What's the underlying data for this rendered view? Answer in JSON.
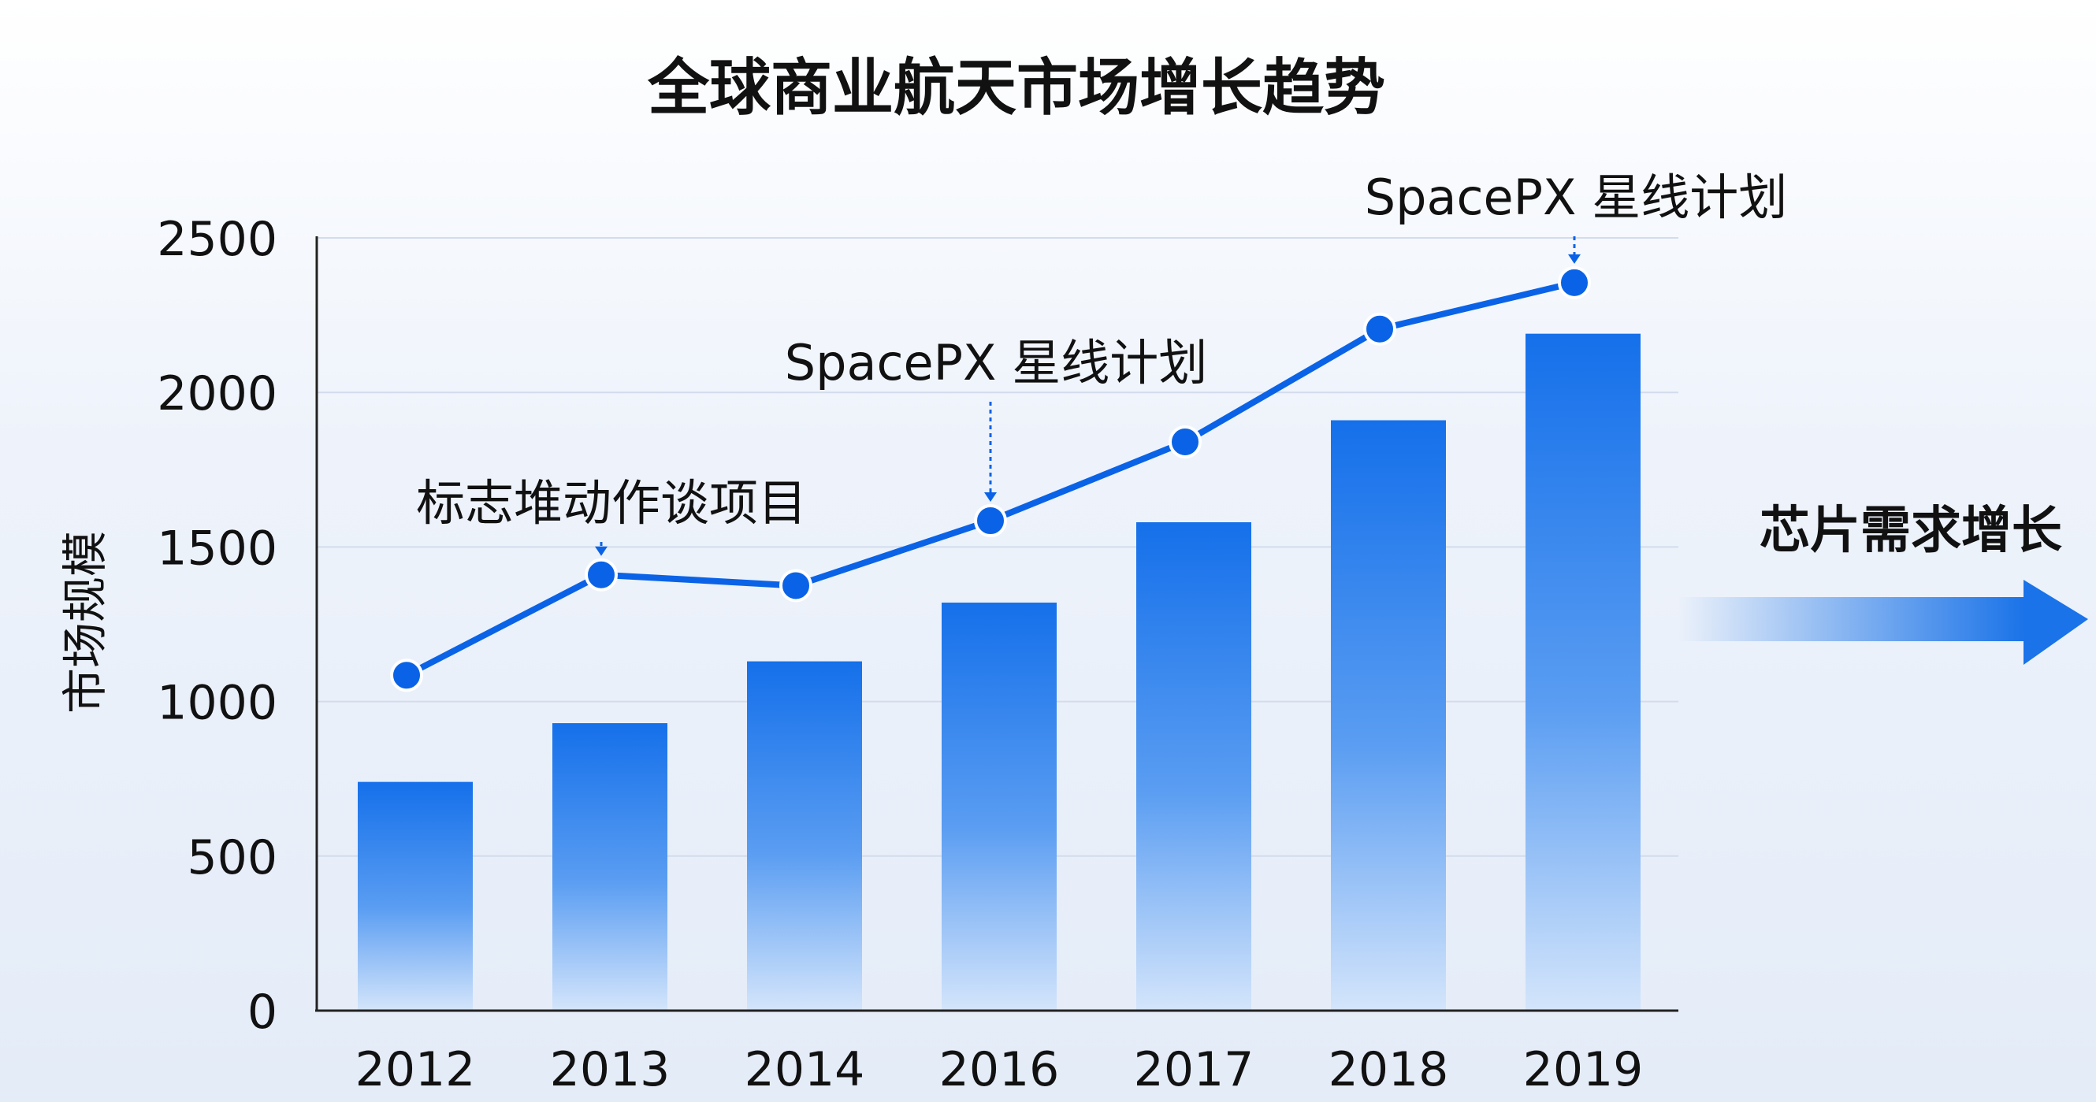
{
  "chart_data": {
    "type": "bar",
    "title": "全球商业航天市场增长趋势",
    "ylabel": "市场规模",
    "xlabel": "",
    "ylim": [
      0,
      2500
    ],
    "yticks": [
      0,
      500,
      1000,
      1500,
      2000,
      2500
    ],
    "grid": true,
    "categories": [
      "2012",
      "2013",
      "2014",
      "2016",
      "2017",
      "2018",
      "2019"
    ],
    "series": [
      {
        "type": "bar",
        "values": [
          740,
          930,
          1130,
          1320,
          1580,
          1910,
          2190
        ]
      },
      {
        "type": "line",
        "values": [
          1085,
          1410,
          1375,
          1585,
          1840,
          2205,
          2355
        ]
      }
    ],
    "annotations": [
      {
        "text": "标志堆动作谈项目",
        "category": "2013"
      },
      {
        "text": "SpacePX  星线计划",
        "category": "2016"
      },
      {
        "text": "SpacePX  星线计划",
        "category": "2019"
      }
    ],
    "side_label": "芯片需求增长",
    "colors": {
      "bar": "#1a73e8",
      "line": "#0a63e6",
      "grid": "#d3dcec",
      "axis": "#222222",
      "text": "#111111"
    }
  }
}
